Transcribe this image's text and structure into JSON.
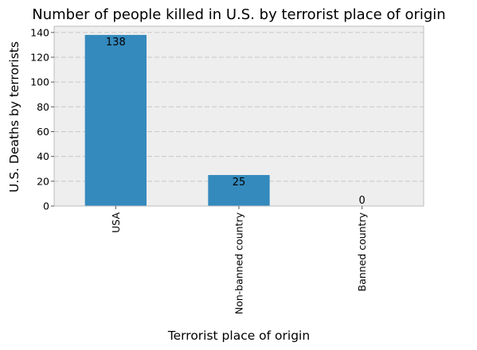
{
  "chart_data": {
    "type": "bar",
    "title": "Number of people killed in U.S. by terrorist place of origin",
    "xlabel": "Terrorist place of origin",
    "ylabel": "U.S. Deaths by terrorists",
    "categories": [
      "USA",
      "Non-banned country",
      "Banned country"
    ],
    "values": [
      138,
      25,
      0
    ],
    "value_labels": [
      "138",
      "25",
      "0"
    ],
    "ylim": [
      0,
      145
    ],
    "yticks": [
      0,
      20,
      40,
      60,
      80,
      100,
      120,
      140
    ],
    "grid": true,
    "legend": "none"
  },
  "colors": {
    "bar": "#348abd",
    "plot_background": "#eeeeee",
    "grid": "#c8c8c8",
    "frame": "#bcbcbc"
  }
}
